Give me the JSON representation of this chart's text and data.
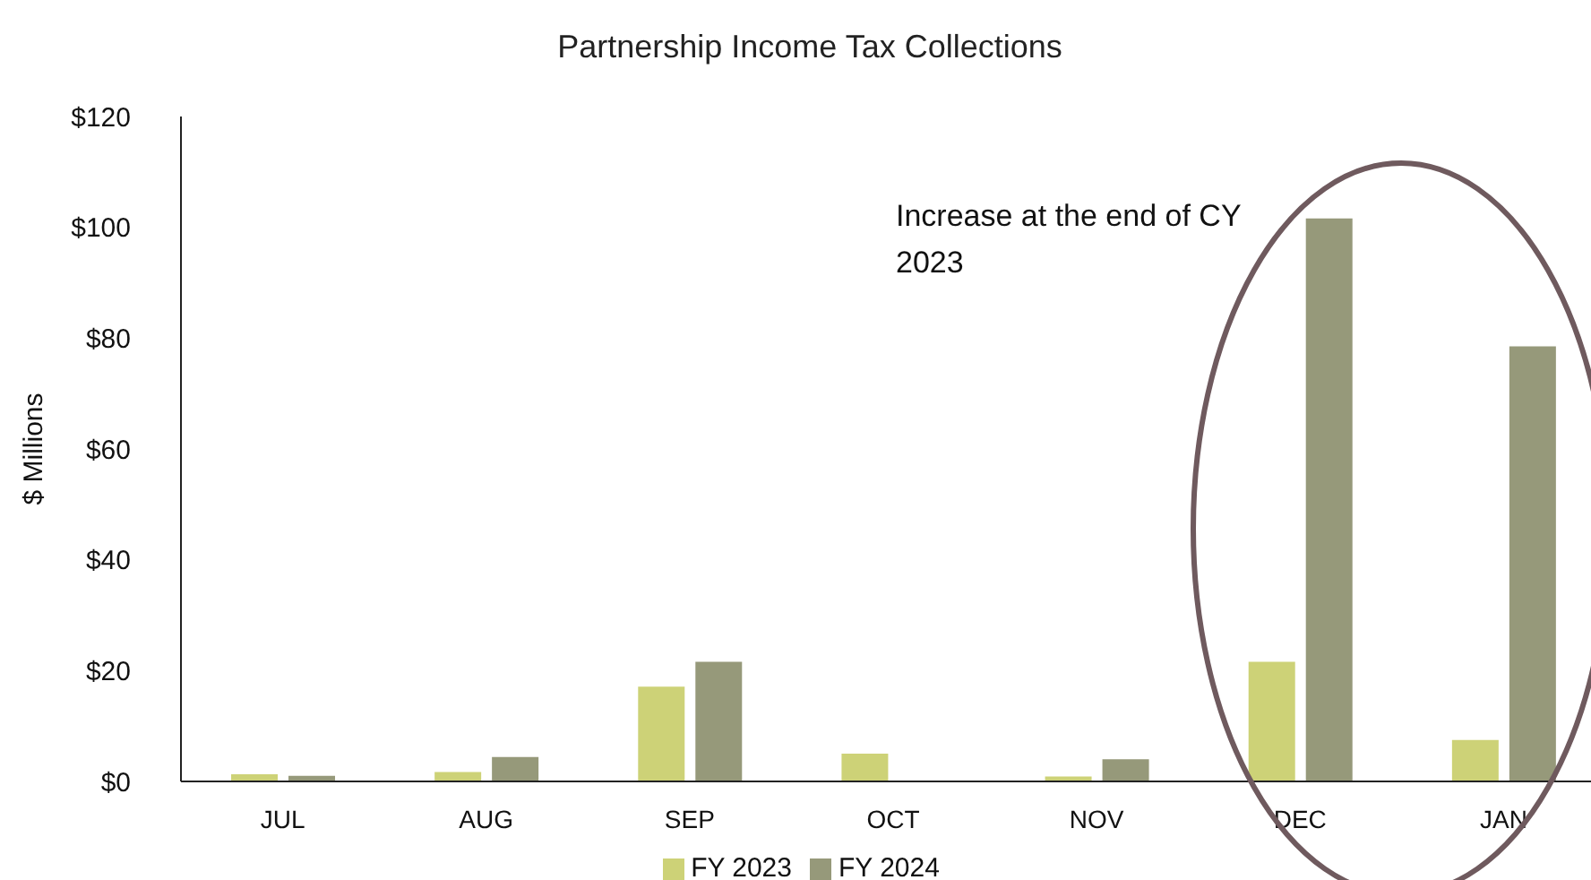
{
  "chart_data": {
    "type": "bar",
    "title": "Partnership Income Tax Collections",
    "ylabel": "$ Millions",
    "categories": [
      "JUL",
      "AUG",
      "SEP",
      "OCT",
      "NOV",
      "DEC",
      "JAN"
    ],
    "series": [
      {
        "name": "FY 2023",
        "color": "#cdd277",
        "values": [
          1.3,
          1.7,
          17.1,
          5.0,
          0.9,
          21.6,
          7.5
        ]
      },
      {
        "name": "FY 2024",
        "color": "#96997a",
        "values": [
          1.0,
          4.4,
          21.6,
          0,
          4.0,
          101.6,
          78.5
        ]
      }
    ],
    "ylim": [
      0,
      120
    ],
    "yticks": [
      {
        "value": 0,
        "label": "$0"
      },
      {
        "value": 20,
        "label": "$20"
      },
      {
        "value": 40,
        "label": "$40"
      },
      {
        "value": 60,
        "label": "$60"
      },
      {
        "value": 80,
        "label": "$80"
      },
      {
        "value": 100,
        "label": "$100"
      },
      {
        "value": 120,
        "label": "$120"
      }
    ],
    "annotations": [
      "Increase at the end of CY 2023"
    ],
    "grid": false,
    "legend": "bottom"
  }
}
